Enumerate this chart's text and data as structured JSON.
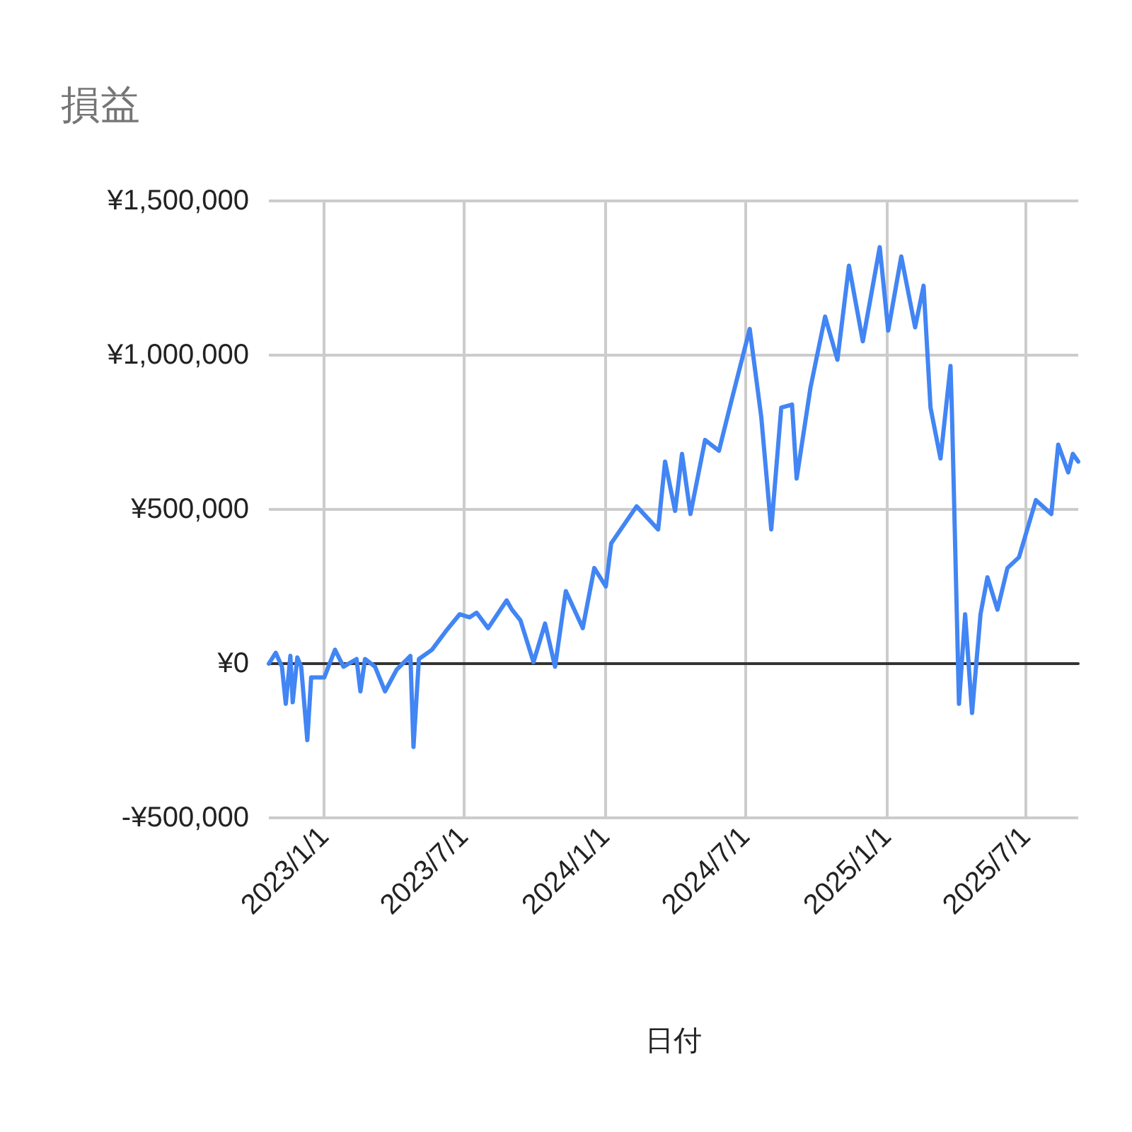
{
  "chart_data": {
    "type": "line",
    "title": "損益",
    "xlabel": "日付",
    "x": [
      "2022-10-21",
      "2022-10-30",
      "2022-11-07",
      "2022-11-12",
      "2022-11-18",
      "2022-11-21",
      "2022-11-27",
      "2022-12-02",
      "2022-12-10",
      "2022-12-15",
      "2023-01-01",
      "2023-01-15",
      "2023-01-26",
      "2023-02-12",
      "2023-02-17",
      "2023-02-23",
      "2023-03-08",
      "2023-03-21",
      "2023-04-05",
      "2023-04-23",
      "2023-04-27",
      "2023-05-04",
      "2023-05-21",
      "2023-06-08",
      "2023-06-26",
      "2023-07-09",
      "2023-07-18",
      "2023-08-02",
      "2023-08-26",
      "2023-09-02",
      "2023-09-13",
      "2023-09-30",
      "2023-10-15",
      "2023-10-28",
      "2023-11-11",
      "2023-12-03",
      "2023-12-18",
      "2024-01-02",
      "2024-01-09",
      "2024-02-11",
      "2024-03-10",
      "2024-03-19",
      "2024-04-01",
      "2024-04-10",
      "2024-04-21",
      "2024-05-10",
      "2024-05-28",
      "2024-06-13",
      "2024-07-07",
      "2024-07-22",
      "2024-08-04",
      "2024-08-17",
      "2024-08-31",
      "2024-09-06",
      "2024-09-24",
      "2024-10-13",
      "2024-10-29",
      "2024-11-13",
      "2024-12-01",
      "2024-12-23",
      "2025-01-03",
      "2025-01-20",
      "2025-02-07",
      "2025-02-18",
      "2025-02-27",
      "2025-03-12",
      "2025-03-25",
      "2025-03-27",
      "2025-04-05",
      "2025-04-13",
      "2025-04-22",
      "2025-05-03",
      "2025-05-12",
      "2025-05-25",
      "2025-06-07",
      "2025-06-22",
      "2025-07-14",
      "2025-08-03",
      "2025-08-12",
      "2025-08-25",
      "2025-08-31",
      "2025-09-07"
    ],
    "series": [
      {
        "color": "#4285f4",
        "values": [
          0,
          35000,
          -10000,
          -130000,
          25000,
          -125000,
          20000,
          -10000,
          -248000,
          -45000,
          -45000,
          45000,
          -10000,
          15000,
          -90000,
          15000,
          -10000,
          -90000,
          -20000,
          25000,
          -270000,
          15000,
          45000,
          105000,
          160000,
          150000,
          165000,
          115000,
          205000,
          175000,
          140000,
          5000,
          130000,
          -10000,
          235000,
          115000,
          310000,
          250000,
          390000,
          510000,
          435000,
          655000,
          495000,
          680000,
          485000,
          725000,
          690000,
          850000,
          1085000,
          800000,
          435000,
          830000,
          840000,
          600000,
          895000,
          1125000,
          985000,
          1290000,
          1045000,
          1350000,
          1080000,
          1320000,
          1090000,
          1225000,
          830000,
          665000,
          965000,
          800000,
          -130000,
          160000,
          -160000,
          160000,
          280000,
          175000,
          310000,
          345000,
          530000,
          485000,
          710000,
          620000,
          680000,
          655000
        ]
      }
    ],
    "xlim": [
      "2022-10-21",
      "2025-09-07"
    ],
    "xticks": [
      {
        "value": "2023-01-01",
        "label": "2023/1/1"
      },
      {
        "value": "2023-07-01",
        "label": "2023/7/1"
      },
      {
        "value": "2024-01-01",
        "label": "2024/1/1"
      },
      {
        "value": "2024-07-01",
        "label": "2024/7/1"
      },
      {
        "value": "2025-01-01",
        "label": "2025/1/1"
      },
      {
        "value": "2025-07-01",
        "label": "2025/7/1"
      }
    ],
    "ylim": [
      -500000,
      1500000
    ],
    "yticks": [
      {
        "value": -500000,
        "label": "-¥500,000"
      },
      {
        "value": 0,
        "label": "¥0"
      },
      {
        "value": 500000,
        "label": "¥500,000"
      },
      {
        "value": 1000000,
        "label": "¥1,000,000"
      },
      {
        "value": 1500000,
        "label": "¥1,500,000"
      }
    ],
    "grid": true,
    "marker": "none",
    "line_style": "solid"
  }
}
